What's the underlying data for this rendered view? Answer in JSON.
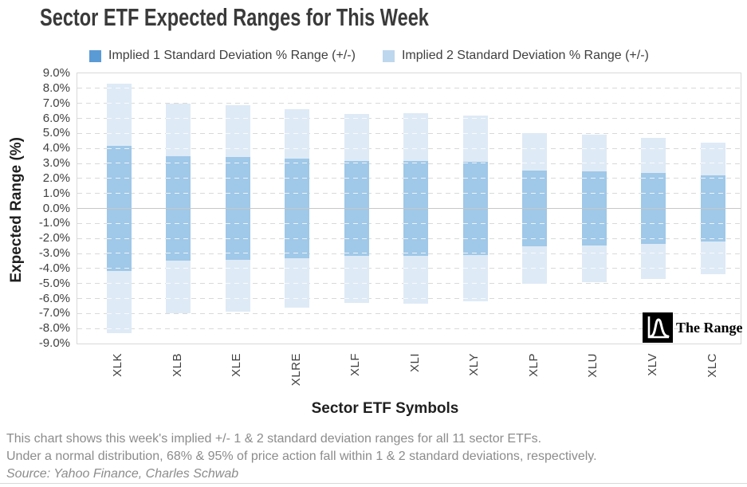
{
  "chart_data": {
    "type": "bar",
    "subtype": "symmetric-range-stacked-column",
    "title": "Sector ETF Expected Ranges for This Week",
    "xlabel": "Sector ETF Symbols",
    "ylabel": "Expected Range (%)",
    "ylim": [
      -9,
      9
    ],
    "ytick_step": 1,
    "ytick_labels": [
      "9.0%",
      "8.0%",
      "7.0%",
      "6.0%",
      "5.0%",
      "4.0%",
      "3.0%",
      "2.0%",
      "1.0%",
      "0.0%",
      "-1.0%",
      "-2.0%",
      "-3.0%",
      "-4.0%",
      "-5.0%",
      "-6.0%",
      "-7.0%",
      "-8.0%",
      "-9.0%"
    ],
    "grid": "horizontal-dashed",
    "legend_position": "top",
    "categories": [
      "XLK",
      "XLB",
      "XLE",
      "XLRE",
      "XLF",
      "XLI",
      "XLY",
      "XLP",
      "XLU",
      "XLV",
      "XLC"
    ],
    "series": [
      {
        "name": "Implied 1 Standard Deviation % Range (+/-)",
        "legend_color": "#5B9BD5",
        "bar_color": "#A0C8E8",
        "plus_minus_values": [
          4.15,
          3.5,
          3.45,
          3.3,
          3.15,
          3.18,
          3.1,
          2.5,
          2.45,
          2.36,
          2.2
        ]
      },
      {
        "name": "Implied 2 Standard Deviation % Range (+/-)",
        "legend_color": "#BDD7EE",
        "bar_color": "#DEEAF6",
        "plus_minus_values": [
          8.3,
          7.0,
          6.9,
          6.6,
          6.3,
          6.35,
          6.2,
          5.0,
          4.9,
          4.72,
          4.4
        ]
      }
    ]
  },
  "logo": {
    "text": "The Range"
  },
  "footer": {
    "line1": "This chart shows this week's implied +/- 1 & 2 standard deviation ranges for all 11 sector ETFs.",
    "line2": "Under a normal distribution, 68% & 95% of price action fall within 1 & 2 standard deviations, respectively.",
    "line3": "Source: Yahoo Finance, Charles Schwab"
  },
  "colors": {
    "grid_dashed": "#D9D9D9",
    "zero_line": "#C8C8C8",
    "tick_label": "#404040",
    "footer_text": "#8C8C8C",
    "title_text": "#3A3A3A"
  }
}
